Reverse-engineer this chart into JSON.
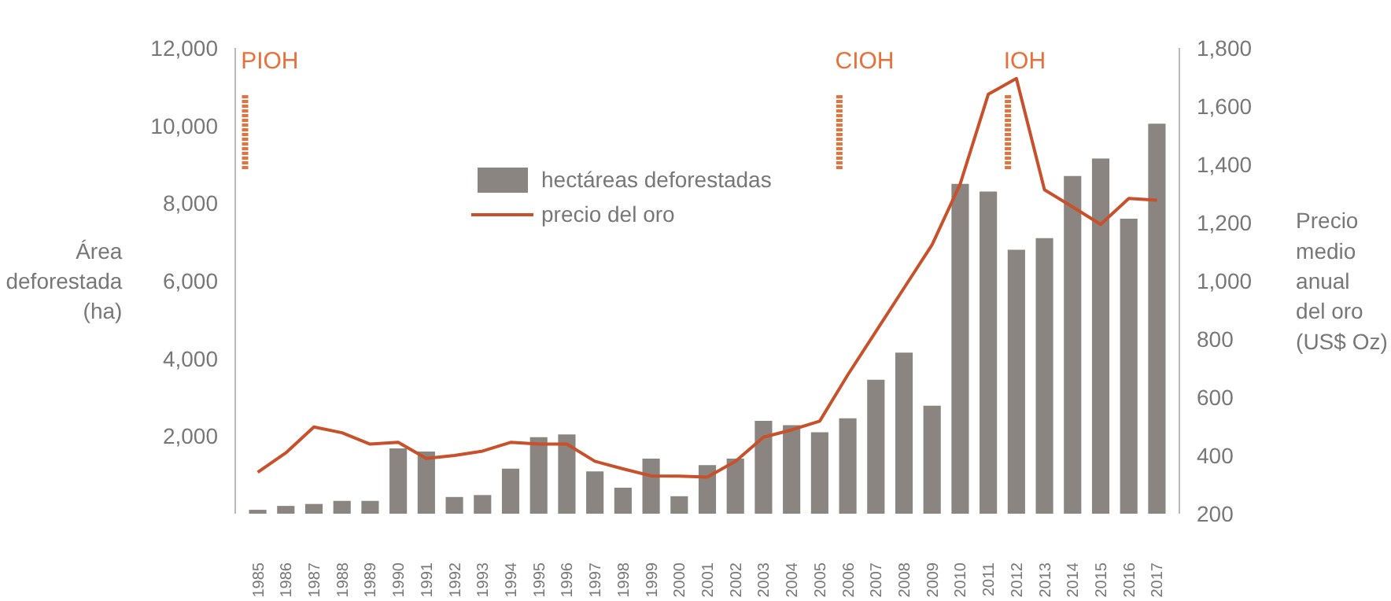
{
  "chart_data": {
    "type": "bar",
    "ylabel": "Área deforestada (ha)",
    "y2label": "Precio medio anual del oro (US$ Oz)",
    "categories": [
      "1985",
      "1986",
      "1987",
      "1988",
      "1989",
      "1990",
      "1991",
      "1992",
      "1993",
      "1994",
      "1995",
      "1996",
      "1997",
      "1998",
      "1999",
      "2000",
      "2001",
      "2002",
      "2003",
      "2004",
      "2005",
      "2006",
      "2007",
      "2008",
      "2009",
      "2010",
      "2011",
      "2012",
      "2013",
      "2014",
      "2015",
      "2016",
      "2017"
    ],
    "series": [
      {
        "name": "hectáreas deforestadas",
        "color": "#8a8580",
        "values": [
          100,
          200,
          250,
          330,
          330,
          1680,
          1600,
          430,
          480,
          1160,
          1970,
          2040,
          1090,
          670,
          1420,
          450,
          1250,
          1420,
          2390,
          2280,
          2100,
          2460,
          3450,
          4150,
          2780,
          8500,
          8300,
          6800,
          7100,
          8700,
          9150,
          7600,
          10050
        ]
      },
      {
        "name": "precio del oro",
        "type": "line",
        "axis": "y2",
        "color": "#c8502a",
        "values": [
          342,
          409,
          498,
          478,
          439,
          445,
          390,
          400,
          415,
          445,
          439,
          439,
          380,
          354,
          330,
          329,
          326,
          380,
          463,
          488,
          518,
          677,
          826,
          975,
          1124,
          1333,
          1641,
          1695,
          1313,
          1254,
          1194,
          1283,
          1277
        ]
      }
    ],
    "ylim": [
      0,
      12000
    ],
    "yticks": [
      {
        "value": 2000,
        "label": "2,000"
      },
      {
        "value": 4000,
        "label": "4,000"
      },
      {
        "value": 6000,
        "label": "6,000"
      },
      {
        "value": 8000,
        "label": "8,000"
      },
      {
        "value": 10000,
        "label": "10,000"
      },
      {
        "value": 12000,
        "label": "12,000"
      }
    ],
    "y2lim": [
      200,
      1800
    ],
    "y2ticks": [
      200,
      400,
      600,
      800,
      {
        "value": 1000,
        "label": "1,000"
      },
      {
        "value": 1200,
        "label": "1,200"
      },
      {
        "value": 1400,
        "label": "1,400"
      },
      {
        "value": 1600,
        "label": "1,600"
      },
      {
        "value": 1800,
        "label": "1,800"
      }
    ],
    "ref_lines": [
      {
        "axis": "x",
        "value": "1985",
        "label": "PIOH",
        "color": "#e8703a",
        "line_style": "dashed"
      },
      {
        "axis": "x",
        "value": "2006",
        "label": "CIOH",
        "color": "#e8703a",
        "line_style": "dashed"
      },
      {
        "axis": "x",
        "value": "2012",
        "label": "IOH",
        "color": "#e8703a",
        "line_style": "dashed"
      }
    ],
    "grid": false,
    "legend": "top left"
  }
}
